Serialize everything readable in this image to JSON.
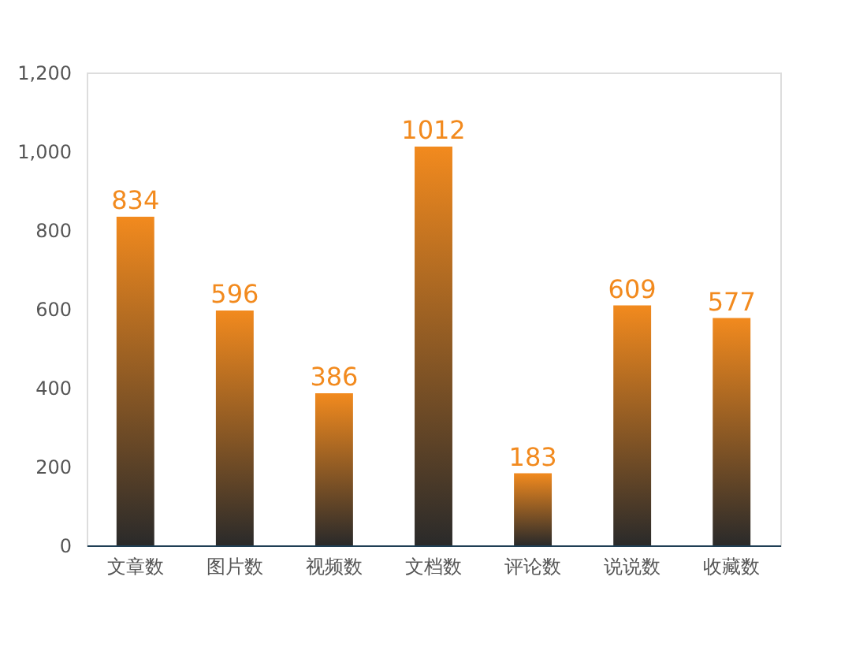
{
  "chart_data": {
    "type": "bar",
    "categories": [
      "文章数",
      "图片数",
      "视频数",
      "文档数",
      "评论数",
      "说说数",
      "收藏数"
    ],
    "values": [
      834,
      596,
      386,
      1012,
      183,
      609,
      577
    ],
    "color": "#f28a1e",
    "ylim": [
      0,
      1200
    ],
    "yticks": [
      0,
      200,
      400,
      600,
      800,
      {
        "value": 1000,
        "label": "1,000"
      },
      {
        "value": 1200,
        "label": "1,200"
      }
    ],
    "grid": false,
    "data_labels": true
  }
}
